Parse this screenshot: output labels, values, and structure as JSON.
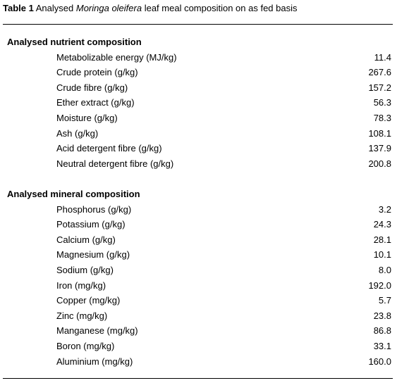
{
  "title": {
    "label": "Table 1",
    "pre": "Analysed",
    "italic": "Moringa oleifera",
    "post": "leaf meal composition on as fed basis"
  },
  "sections": [
    {
      "heading": "Analysed nutrient composition",
      "rows": [
        [
          "Metabolizable energy (MJ/kg)",
          "11.4"
        ],
        [
          "Crude protein (g/kg)",
          "267.6"
        ],
        [
          "Crude fibre (g/kg)",
          "157.2"
        ],
        [
          "Ether extract (g/kg)",
          "56.3"
        ],
        [
          "Moisture (g/kg)",
          "78.3"
        ],
        [
          "Ash (g/kg)",
          "108.1"
        ],
        [
          "Acid detergent fibre (g/kg)",
          "137.9"
        ],
        [
          "Neutral detergent fibre (g/kg)",
          "200.8"
        ]
      ]
    },
    {
      "heading": "Analysed mineral composition",
      "rows": [
        [
          "Phosphorus (g/kg)",
          "3.2"
        ],
        [
          "Potassium (g/kg)",
          "24.3"
        ],
        [
          "Calcium (g/kg)",
          "28.1"
        ],
        [
          "Magnesium (g/kg)",
          "10.1"
        ],
        [
          "Sodium (g/kg)",
          "8.0"
        ],
        [
          "Iron (mg/kg)",
          "192.0"
        ],
        [
          "Copper (mg/kg)",
          "5.7"
        ],
        [
          "Zinc (mg/kg)",
          "23.8"
        ],
        [
          "Manganese (mg/kg)",
          "86.8"
        ],
        [
          "Boron (mg/kg)",
          "33.1"
        ],
        [
          "Aluminium (mg/kg)",
          "160.0"
        ]
      ]
    }
  ]
}
